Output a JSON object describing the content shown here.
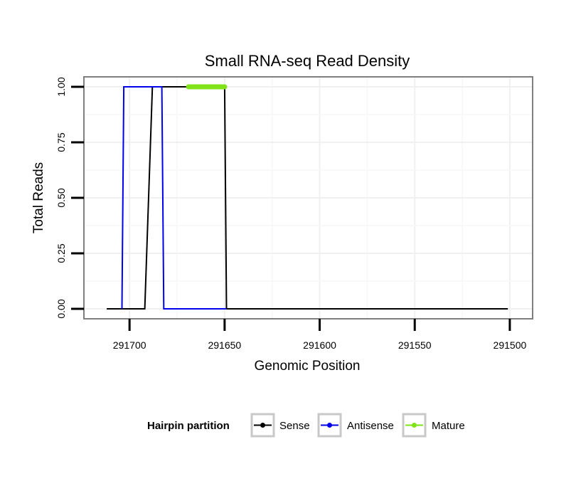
{
  "chart_data": {
    "type": "line",
    "title": "Small RNA-seq Read Density",
    "xlabel": "Genomic Position",
    "ylabel": "Total Reads",
    "x_reversed": true,
    "xlim": [
      291724,
      291488
    ],
    "ylim": [
      -0.045,
      1.045
    ],
    "x_ticks": [
      291700,
      291650,
      291600,
      291550,
      291500
    ],
    "x_tick_labels": [
      "291700",
      "291650",
      "291600",
      "291550",
      "291500"
    ],
    "y_ticks": [
      0,
      0.25,
      0.5,
      0.75,
      1.0
    ],
    "y_tick_labels": [
      "0.00",
      "0.25",
      "0.50",
      "0.75",
      "1.00"
    ],
    "grid": true,
    "legend": {
      "title": "Hairpin partition",
      "position": "bottom"
    },
    "series": [
      {
        "name": "Sense",
        "color": "#000000",
        "x": [
          291712,
          291692,
          291688,
          291668,
          291651,
          291650,
          291649,
          291501
        ],
        "y": [
          0,
          0,
          1,
          1,
          1,
          1,
          0,
          0
        ]
      },
      {
        "name": "Antisense",
        "color": "#0000ee",
        "x": [
          291704,
          291703,
          291702,
          291683,
          291682,
          291649
        ],
        "y": [
          0,
          1,
          1,
          1,
          0,
          0
        ]
      },
      {
        "name": "Mature",
        "color": "#7fe318",
        "x": [
          291669,
          291650
        ],
        "y": [
          1,
          1
        ]
      }
    ]
  }
}
